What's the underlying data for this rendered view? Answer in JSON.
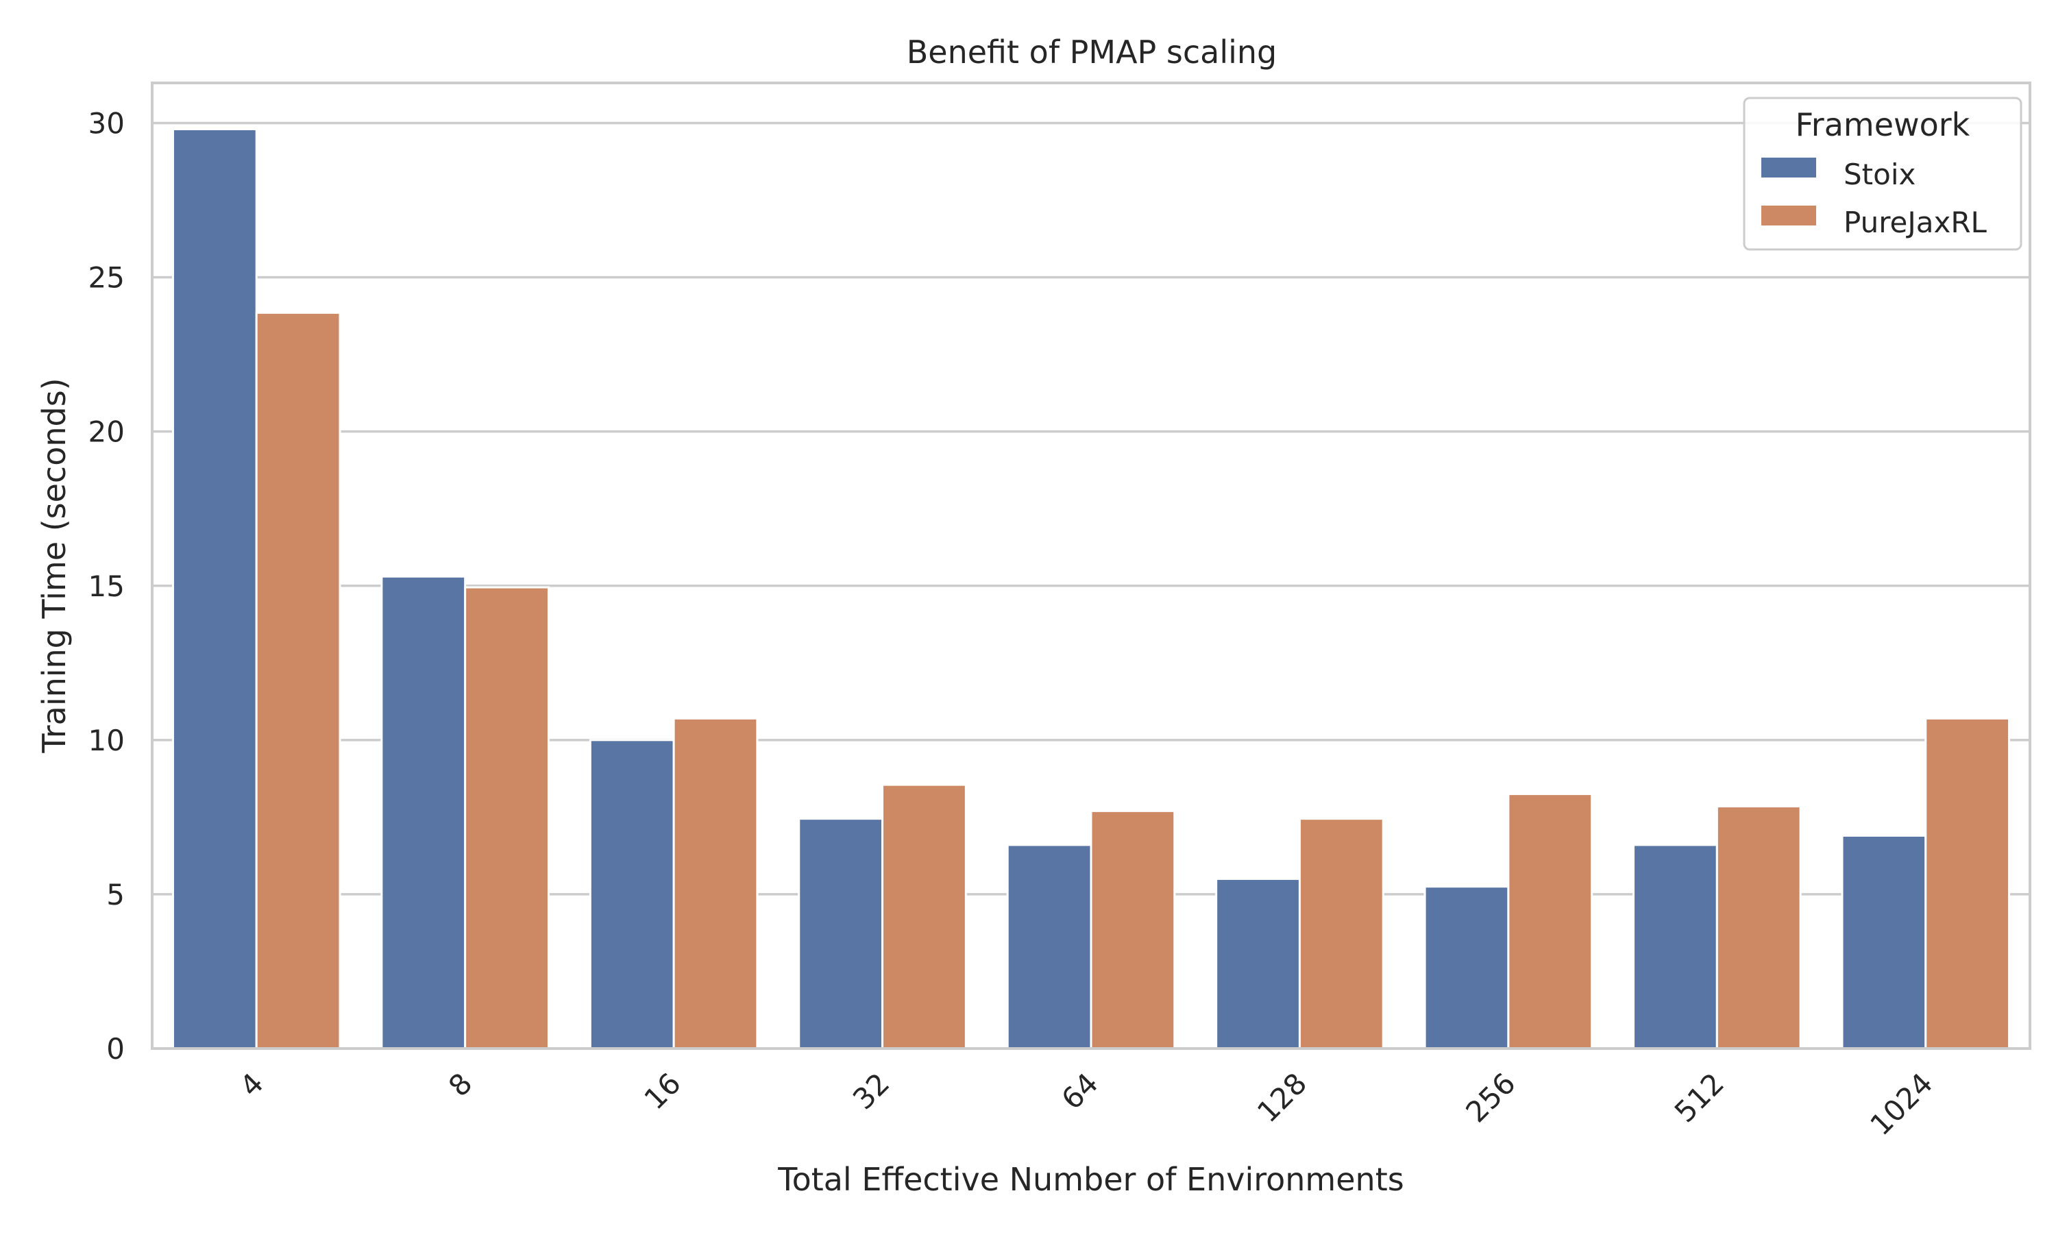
{
  "chart_data": {
    "type": "bar",
    "title": "Benefit of PMAP scaling",
    "xlabel": "Total Effective Number of Environments",
    "ylabel": "Training Time (seconds)",
    "categories": [
      "4",
      "8",
      "16",
      "32",
      "64",
      "128",
      "256",
      "512",
      "1024"
    ],
    "series": [
      {
        "name": "Stoix",
        "color": "#5875a4",
        "values": [
          29.8,
          15.3,
          10.0,
          7.45,
          6.6,
          5.5,
          5.25,
          6.6,
          6.9
        ]
      },
      {
        "name": "PureJaxRL",
        "color": "#cc8963",
        "values": [
          23.85,
          14.95,
          10.7,
          8.55,
          7.7,
          7.45,
          8.25,
          7.85,
          10.7
        ]
      }
    ],
    "ylim": [
      0,
      31.3
    ],
    "yticks": [
      0,
      5,
      10,
      15,
      20,
      25,
      30
    ],
    "grid": "horizontal",
    "legend": {
      "title": "Framework",
      "placement": "top-right"
    }
  }
}
